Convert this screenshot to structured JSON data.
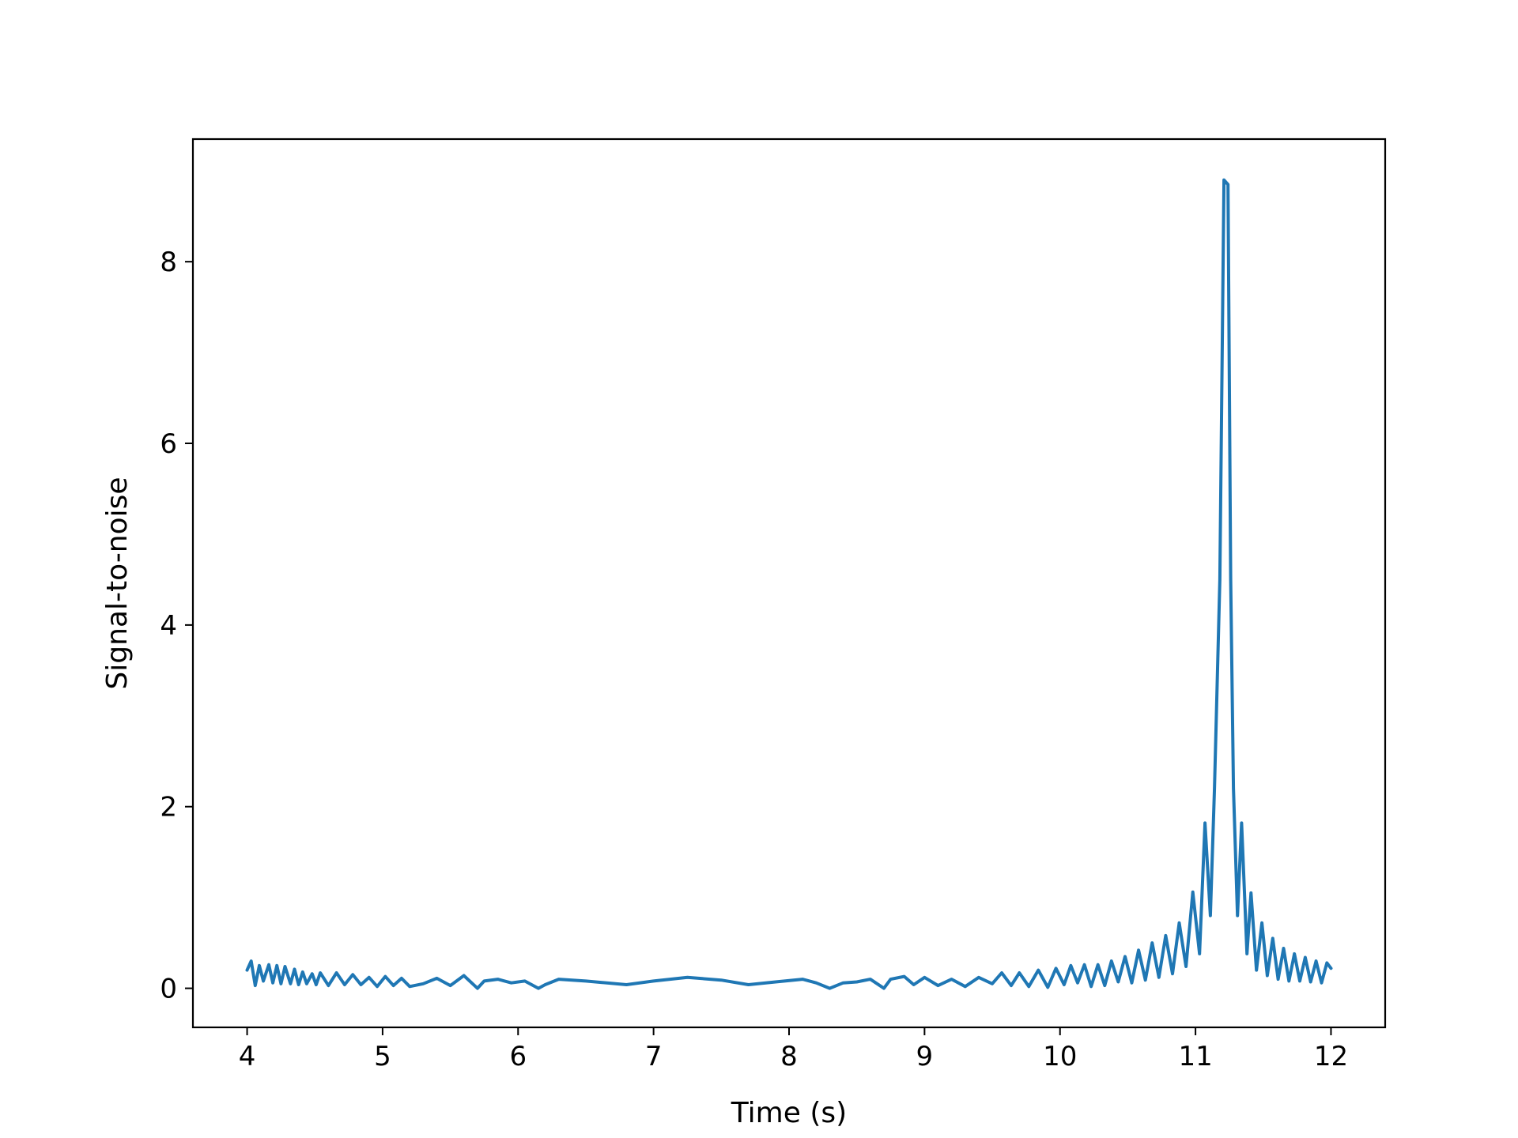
{
  "chart_data": {
    "type": "line",
    "title": "",
    "xlabel": "Time (s)",
    "ylabel": "Signal-to-noise",
    "xlim": [
      3.6,
      12.4
    ],
    "ylim": [
      -0.43,
      9.35
    ],
    "xticks": [
      4,
      5,
      6,
      7,
      8,
      9,
      10,
      11,
      12
    ],
    "yticks": [
      0,
      2,
      4,
      6,
      8
    ],
    "grid": false,
    "legend": "none",
    "series": [
      {
        "color": "#1f77b4",
        "x": [
          4.0,
          4.03,
          4.06,
          4.09,
          4.12,
          4.16,
          4.19,
          4.22,
          4.25,
          4.28,
          4.32,
          4.35,
          4.38,
          4.41,
          4.44,
          4.48,
          4.51,
          4.54,
          4.6,
          4.66,
          4.72,
          4.78,
          4.84,
          4.9,
          4.96,
          5.02,
          5.08,
          5.14,
          5.2,
          5.3,
          5.4,
          5.5,
          5.6,
          5.7,
          5.75,
          5.85,
          5.95,
          6.05,
          6.15,
          6.2,
          6.3,
          6.5,
          6.8,
          7.0,
          7.25,
          7.5,
          7.7,
          7.9,
          8.1,
          8.2,
          8.3,
          8.4,
          8.5,
          8.6,
          8.7,
          8.75,
          8.85,
          8.92,
          9.0,
          9.1,
          9.2,
          9.3,
          9.4,
          9.5,
          9.57,
          9.64,
          9.7,
          9.77,
          9.84,
          9.91,
          9.97,
          10.03,
          10.08,
          10.13,
          10.18,
          10.23,
          10.28,
          10.33,
          10.38,
          10.43,
          10.48,
          10.53,
          10.58,
          10.63,
          10.68,
          10.73,
          10.78,
          10.83,
          10.88,
          10.93,
          10.98,
          11.03,
          11.07,
          11.11,
          11.14,
          11.18,
          11.21,
          11.24,
          11.26,
          11.28,
          11.31,
          11.34,
          11.38,
          11.41,
          11.45,
          11.49,
          11.53,
          11.57,
          11.61,
          11.65,
          11.69,
          11.73,
          11.77,
          11.81,
          11.85,
          11.89,
          11.93,
          11.97,
          12.0
        ],
        "y": [
          0.2,
          0.3,
          0.03,
          0.25,
          0.08,
          0.26,
          0.06,
          0.25,
          0.05,
          0.24,
          0.05,
          0.21,
          0.04,
          0.18,
          0.05,
          0.16,
          0.04,
          0.17,
          0.03,
          0.17,
          0.04,
          0.15,
          0.04,
          0.12,
          0.02,
          0.13,
          0.03,
          0.11,
          0.02,
          0.05,
          0.11,
          0.03,
          0.14,
          0.0,
          0.08,
          0.1,
          0.06,
          0.08,
          0.0,
          0.04,
          0.1,
          0.08,
          0.04,
          0.08,
          0.12,
          0.09,
          0.04,
          0.07,
          0.1,
          0.06,
          0.0,
          0.06,
          0.07,
          0.1,
          0.0,
          0.1,
          0.13,
          0.04,
          0.12,
          0.03,
          0.1,
          0.02,
          0.12,
          0.05,
          0.17,
          0.03,
          0.17,
          0.02,
          0.2,
          0.01,
          0.22,
          0.04,
          0.25,
          0.06,
          0.26,
          0.02,
          0.26,
          0.03,
          0.3,
          0.07,
          0.35,
          0.06,
          0.42,
          0.09,
          0.5,
          0.12,
          0.58,
          0.16,
          0.72,
          0.24,
          1.06,
          0.38,
          1.82,
          0.8,
          2.2,
          4.5,
          8.9,
          8.85,
          4.5,
          2.2,
          0.8,
          1.82,
          0.38,
          1.05,
          0.2,
          0.72,
          0.14,
          0.55,
          0.1,
          0.44,
          0.08,
          0.38,
          0.08,
          0.34,
          0.07,
          0.3,
          0.06,
          0.28,
          0.22
        ]
      }
    ]
  }
}
